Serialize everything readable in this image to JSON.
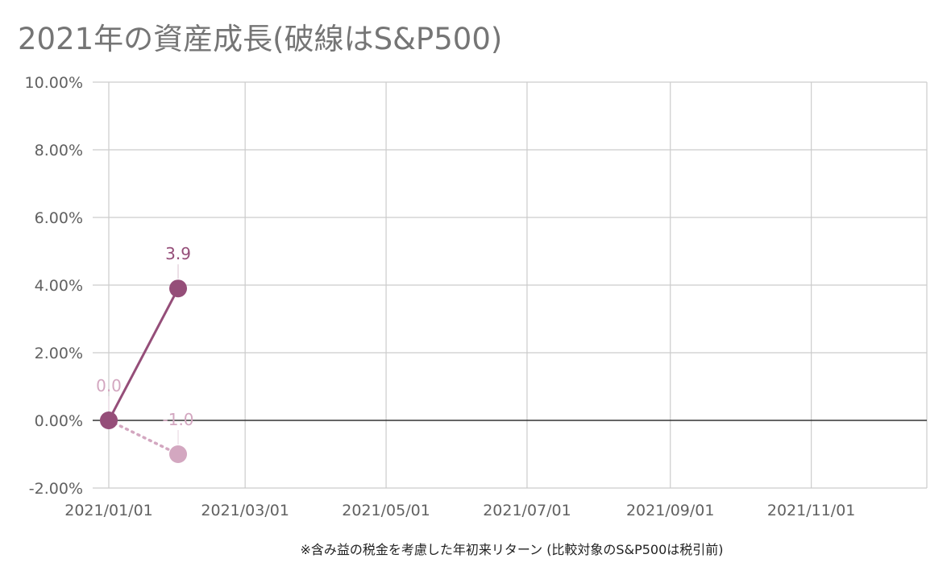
{
  "chart_data": {
    "type": "line",
    "title": "2021年の資産成長(破線はS&P500)",
    "xlabel": "※含み益の税金を考慮した年初来リターン (比較対象のS&P500は税引前)",
    "ylabel": "",
    "ylim": [
      -2,
      10
    ],
    "y_ticks": [
      "10.00%",
      "8.00%",
      "6.00%",
      "4.00%",
      "2.00%",
      "0.00%",
      "-2.00%"
    ],
    "y_tick_values": [
      10,
      8,
      6,
      4,
      2,
      0,
      -2
    ],
    "xlim": [
      "2021-01-01",
      "2021-12-21"
    ],
    "x_ticks": [
      "2021/01/01",
      "2021/03/01",
      "2021/05/01",
      "2021/07/01",
      "2021/09/01",
      "2021/11/01"
    ],
    "x_tick_dates": [
      "2021-01-01",
      "2021-03-01",
      "2021-05-01",
      "2021-07-01",
      "2021-09-01",
      "2021-11-01"
    ],
    "grid": true,
    "series": [
      {
        "style": "solid",
        "color": "#954e79",
        "x": [
          "2021-01-01",
          "2021-01-31"
        ],
        "y": [
          0.0,
          3.9
        ],
        "labels": [
          "",
          "3.9"
        ]
      },
      {
        "style": "dotted",
        "color": "#d3a7c0",
        "x": [
          "2021-01-01",
          "2021-01-31"
        ],
        "y": [
          0.0,
          -1.0
        ],
        "labels": [
          "0.0",
          "-1.0"
        ]
      }
    ]
  }
}
